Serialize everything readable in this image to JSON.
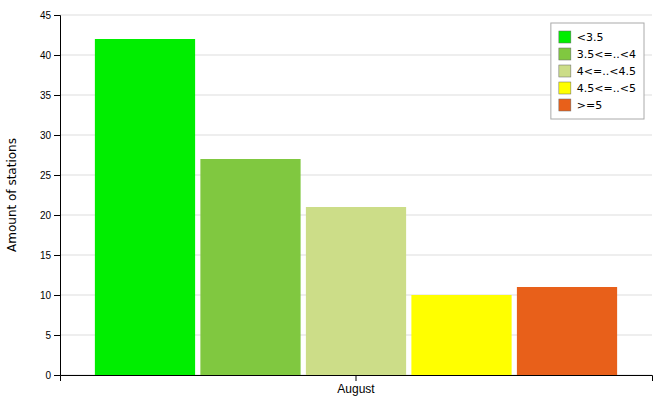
{
  "chart_data": {
    "type": "bar",
    "categories": [
      "August"
    ],
    "series": [
      {
        "name": "<3.5",
        "color": "#00ee00",
        "values": [
          42
        ]
      },
      {
        "name": "3.5<=..<4",
        "color": "#80c840",
        "values": [
          27
        ]
      },
      {
        "name": "4<=..<4.5",
        "color": "#ccdd88",
        "values": [
          21
        ]
      },
      {
        "name": "4.5<=..<5",
        "color": "#ffff00",
        "values": [
          10
        ]
      },
      {
        "name": ">=5",
        "color": "#e8601a",
        "values": [
          11
        ]
      }
    ],
    "ylabel": "Amount of stations",
    "ylim": [
      0,
      45
    ],
    "yticks": [
      0,
      5,
      10,
      15,
      20,
      25,
      30,
      35,
      40,
      45
    ],
    "grid": true,
    "legend": "upper right"
  }
}
